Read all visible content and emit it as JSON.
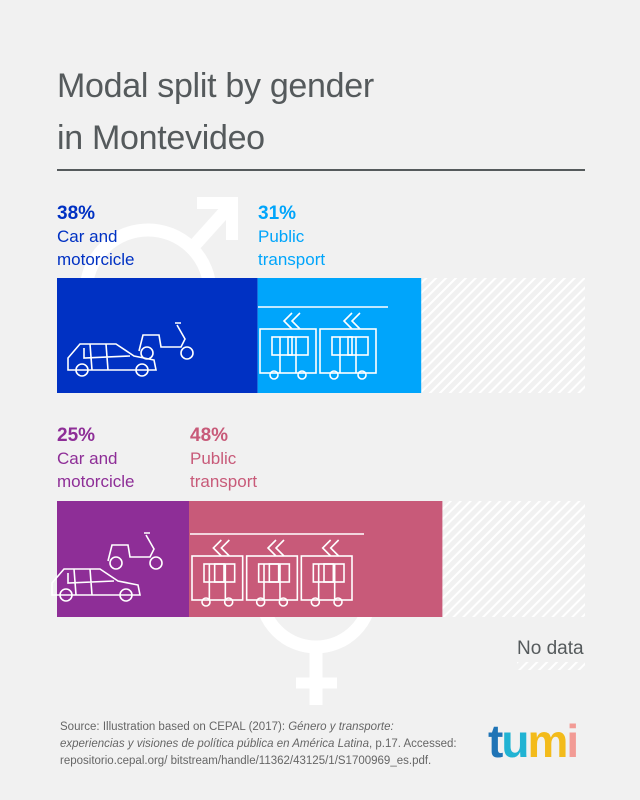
{
  "title_line1": "Modal split by gender",
  "title_line2": "in Montevideo",
  "chart_data": {
    "type": "bar",
    "orientation": "horizontal-stacked",
    "categories": [
      "Men",
      "Women"
    ],
    "series": [
      {
        "name": "Car and motorcicle",
        "values": [
          38,
          25
        ]
      },
      {
        "name": "Public transport",
        "values": [
          31,
          48
        ]
      },
      {
        "name": "No data",
        "values": [
          31,
          27
        ]
      }
    ],
    "xlim": [
      0,
      100
    ],
    "colors": {
      "men_car": "#0031c3",
      "men_public": "#00a5fb",
      "women_car": "#8e2e97",
      "women_public": "#c85a79",
      "no_data": "hatched"
    },
    "labels": {
      "men_car_pct": "38%",
      "men_car_l1": "Car and",
      "men_car_l2": "motorcicle",
      "men_pt_pct": "31%",
      "men_pt_l1": "Public",
      "men_pt_l2": "transport",
      "women_car_pct": "25%",
      "women_car_l1": "Car and",
      "women_car_l2": "motorcicle",
      "women_pt_pct": "48%",
      "women_pt_l1": "Public",
      "women_pt_l2": "transport"
    },
    "legend": {
      "no_data": "No data"
    },
    "icons": [
      "male-symbol",
      "female-symbol",
      "car-icon",
      "scooter-icon",
      "tram-icon"
    ]
  },
  "source": {
    "prefix": "Source: Illustration based on CEPAL (2017): ",
    "title_italic": "Género y transporte: experiencias y visiones de política pública en América Latina",
    "suffix": ", p.17. Accessed: repositorio.cepal.org/ bitstream/handle/11362/43125/1/S1700969_es.pdf."
  },
  "logo": {
    "t": "t",
    "u": "u",
    "m": "m",
    "i": "i"
  }
}
